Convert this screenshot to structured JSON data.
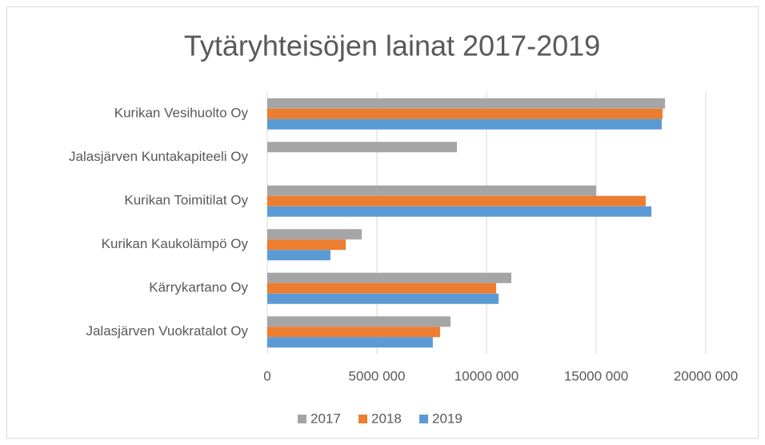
{
  "chart_data": {
    "type": "hbar",
    "title": "Tytäryhteisöjen lainat 2017-2019",
    "categories": [
      "Kurikan Vesihuolto Oy",
      "Jalasjärven Kuntakapiteeli Oy",
      "Kurikan Toimitilat Oy",
      "Kurikan Kaukolämpö Oy",
      "Kärrykartano Oy",
      "Jalasjärven Vuokratalot Oy"
    ],
    "series": [
      {
        "name": "2017",
        "color": "#a5a5a5",
        "values": [
          18140000,
          8650000,
          15000000,
          4310000,
          11130000,
          8360000
        ]
      },
      {
        "name": "2018",
        "color": "#ed7d31",
        "values": [
          18030000,
          null,
          17260000,
          3580000,
          10440000,
          7880000
        ]
      },
      {
        "name": "2019",
        "color": "#5b9bd5",
        "values": [
          17990000,
          null,
          17520000,
          2880000,
          10550000,
          7550000
        ]
      }
    ],
    "xlim": [
      0,
      20000000
    ],
    "xticks": [
      0,
      {
        "value": 5000000,
        "label": "5000 000"
      },
      {
        "value": 10000000,
        "label": "10000 000"
      },
      {
        "value": 15000000,
        "label": "15000 000"
      },
      {
        "value": 20000000,
        "label": "20000 000"
      }
    ],
    "grid": true,
    "legend": "bottom"
  }
}
